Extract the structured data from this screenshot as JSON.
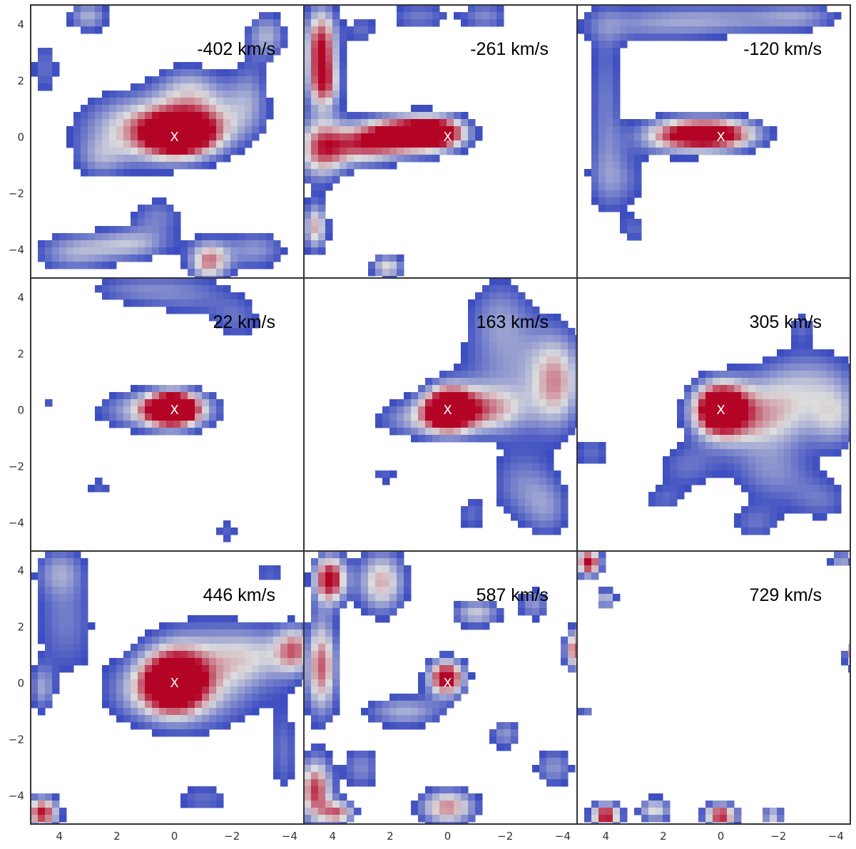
{
  "chart_data": {
    "type": "heatmap",
    "layout": "3x3 grid of channel maps",
    "colormap": "coolwarm",
    "colors": {
      "low": "#3b4cc0",
      "mid": "#dddddd",
      "high": "#b40426",
      "background": "#ffffff",
      "frame": "#333333",
      "marker": "#ffffff"
    },
    "xlim": [
      5,
      -4.5
    ],
    "ylim": [
      -5,
      4.7
    ],
    "xticks": [
      4,
      2,
      0,
      -2,
      -4
    ],
    "yticks": [
      4,
      2,
      0,
      -2,
      -4
    ],
    "xtick_labels": [
      "4",
      "2",
      "0",
      "−2",
      "−4"
    ],
    "ytick_labels": [
      "4",
      "2",
      "0",
      "−2",
      "−4"
    ],
    "marker_text": "X",
    "marker_position": [
      0,
      0
    ],
    "grid": false,
    "panels": [
      {
        "label": "-402 km/s",
        "velocity": -402,
        "blobs": [
          {
            "x": -0.2,
            "y": 0.1,
            "sx": 0.9,
            "sy": 0.55,
            "a": 1.6
          },
          {
            "x": 1.2,
            "y": 0.3,
            "sx": 1.5,
            "sy": 0.9,
            "a": 0.8
          },
          {
            "x": -1.4,
            "y": 0.7,
            "sx": 1.2,
            "sy": 0.8,
            "a": 0.5
          },
          {
            "x": -0.5,
            "y": 1.8,
            "sx": 0.8,
            "sy": 0.6,
            "a": 0.45
          },
          {
            "x": -2.6,
            "y": 1.6,
            "sx": 0.5,
            "sy": 0.9,
            "a": 0.35
          },
          {
            "x": 2.6,
            "y": -0.8,
            "sx": 0.6,
            "sy": 0.5,
            "a": 0.35
          },
          {
            "x": -1.2,
            "y": -4.4,
            "sx": 0.5,
            "sy": 0.5,
            "a": 1.0
          },
          {
            "x": 1.5,
            "y": -3.8,
            "sx": 1.0,
            "sy": 0.4,
            "a": 0.6
          },
          {
            "x": 3.5,
            "y": -4.1,
            "sx": 1.0,
            "sy": 0.5,
            "a": 0.55
          },
          {
            "x": -2.8,
            "y": -4.0,
            "sx": 0.8,
            "sy": 0.5,
            "a": 0.5
          },
          {
            "x": 0.6,
            "y": -2.8,
            "sx": 0.7,
            "sy": 0.5,
            "a": 0.4
          },
          {
            "x": 3.0,
            "y": 4.3,
            "sx": 0.5,
            "sy": 0.4,
            "a": 0.6
          },
          {
            "x": 4.5,
            "y": 2.5,
            "sx": 0.4,
            "sy": 0.8,
            "a": 0.35
          },
          {
            "x": -3.2,
            "y": 3.6,
            "sx": 0.5,
            "sy": 0.6,
            "a": 0.6
          }
        ]
      },
      {
        "label": "-261 km/s",
        "velocity": -261,
        "blobs": [
          {
            "x": 1.5,
            "y": 0.1,
            "sx": 1.0,
            "sy": 0.45,
            "a": 1.5
          },
          {
            "x": 0.3,
            "y": 0.15,
            "sx": 0.7,
            "sy": 0.4,
            "a": 1.3
          },
          {
            "x": 3.0,
            "y": -0.3,
            "sx": 0.9,
            "sy": 0.5,
            "a": 0.9
          },
          {
            "x": 4.4,
            "y": -0.4,
            "sx": 0.6,
            "sy": 0.8,
            "a": 1.0
          },
          {
            "x": 4.4,
            "y": 3.2,
            "sx": 0.4,
            "sy": 1.0,
            "a": 1.3
          },
          {
            "x": 4.3,
            "y": 1.8,
            "sx": 0.4,
            "sy": 0.6,
            "a": 0.8
          },
          {
            "x": 4.6,
            "y": -3.2,
            "sx": 0.3,
            "sy": 0.6,
            "a": 0.9
          },
          {
            "x": 2.1,
            "y": -4.6,
            "sx": 0.4,
            "sy": 0.3,
            "a": 0.8
          },
          {
            "x": 1.0,
            "y": 4.3,
            "sx": 0.8,
            "sy": 0.4,
            "a": 0.4
          },
          {
            "x": -1.3,
            "y": 4.3,
            "sx": 0.6,
            "sy": 0.4,
            "a": 0.45
          },
          {
            "x": 3.0,
            "y": 3.8,
            "sx": 0.4,
            "sy": 0.4,
            "a": 0.35
          }
        ]
      },
      {
        "label": "-120 km/s",
        "velocity": -120,
        "blobs": [
          {
            "x": 0.3,
            "y": 0.1,
            "sx": 1.1,
            "sy": 0.4,
            "a": 1.6
          },
          {
            "x": 1.8,
            "y": 0.05,
            "sx": 0.9,
            "sy": 0.45,
            "a": 0.6
          },
          {
            "x": 4.0,
            "y": 1.0,
            "sx": 0.45,
            "sy": 2.4,
            "a": 0.4
          },
          {
            "x": 3.5,
            "y": -1.5,
            "sx": 0.8,
            "sy": 0.8,
            "a": 0.35
          },
          {
            "x": 2.5,
            "y": 4.0,
            "sx": 2.0,
            "sy": 0.5,
            "a": 0.4
          },
          {
            "x": -0.5,
            "y": 4.2,
            "sx": 2.0,
            "sy": 0.4,
            "a": 0.38
          },
          {
            "x": -2.8,
            "y": 4.3,
            "sx": 1.0,
            "sy": 0.35,
            "a": 0.35
          },
          {
            "x": 3.0,
            "y": -3.3,
            "sx": 0.4,
            "sy": 0.4,
            "a": 0.3
          }
        ]
      },
      {
        "label": "22 km/s",
        "velocity": 22,
        "blobs": [
          {
            "x": 0.05,
            "y": 0.05,
            "sx": 0.6,
            "sy": 0.4,
            "a": 1.8
          },
          {
            "x": 0.5,
            "y": 0.0,
            "sx": 1.4,
            "sy": 0.5,
            "a": 0.8
          },
          {
            "x": -0.5,
            "y": 4.1,
            "sx": 1.2,
            "sy": 0.6,
            "a": 0.35
          },
          {
            "x": 1.6,
            "y": 4.3,
            "sx": 1.2,
            "sy": 0.4,
            "a": 0.35
          },
          {
            "x": -2.2,
            "y": 3.2,
            "sx": 0.7,
            "sy": 0.6,
            "a": 0.32
          },
          {
            "x": 2.6,
            "y": -2.7,
            "sx": 0.4,
            "sy": 0.3,
            "a": 0.3
          },
          {
            "x": -1.8,
            "y": -4.3,
            "sx": 0.4,
            "sy": 0.4,
            "a": 0.3
          },
          {
            "x": 4.4,
            "y": 0.3,
            "sx": 0.25,
            "sy": 0.2,
            "a": 0.25
          }
        ]
      },
      {
        "label": "163 km/s",
        "velocity": 163,
        "blobs": [
          {
            "x": 0.0,
            "y": 0.05,
            "sx": 0.6,
            "sy": 0.55,
            "a": 1.7
          },
          {
            "x": -1.3,
            "y": 0.0,
            "sx": 1.0,
            "sy": 0.6,
            "a": 0.8
          },
          {
            "x": 1.2,
            "y": -0.3,
            "sx": 1.0,
            "sy": 0.5,
            "a": 0.5
          },
          {
            "x": -2.5,
            "y": 1.5,
            "sx": 1.5,
            "sy": 1.3,
            "a": 0.45
          },
          {
            "x": -3.8,
            "y": 0.9,
            "sx": 0.6,
            "sy": 1.2,
            "a": 0.7
          },
          {
            "x": -1.8,
            "y": 3.5,
            "sx": 0.8,
            "sy": 1.0,
            "a": 0.38
          },
          {
            "x": -2.5,
            "y": -2.6,
            "sx": 0.8,
            "sy": 1.0,
            "a": 0.4
          },
          {
            "x": -3.5,
            "y": -3.5,
            "sx": 0.6,
            "sy": 0.8,
            "a": 0.4
          },
          {
            "x": -0.8,
            "y": -3.7,
            "sx": 0.4,
            "sy": 0.5,
            "a": 0.32
          },
          {
            "x": 2.2,
            "y": -2.3,
            "sx": 0.4,
            "sy": 0.3,
            "a": 0.3
          }
        ]
      },
      {
        "label": "305 km/s",
        "velocity": 305,
        "blobs": [
          {
            "x": 0.05,
            "y": 0.05,
            "sx": 0.65,
            "sy": 0.65,
            "a": 1.7
          },
          {
            "x": -1.4,
            "y": -0.3,
            "sx": 1.3,
            "sy": 0.9,
            "a": 0.8
          },
          {
            "x": -3.0,
            "y": 1.0,
            "sx": 1.3,
            "sy": 0.9,
            "a": 0.5
          },
          {
            "x": -4.0,
            "y": -0.3,
            "sx": 0.6,
            "sy": 0.8,
            "a": 0.5
          },
          {
            "x": -1.8,
            "y": -2.3,
            "sx": 1.0,
            "sy": 0.7,
            "a": 0.4
          },
          {
            "x": 1.2,
            "y": -2.0,
            "sx": 0.8,
            "sy": 0.6,
            "a": 0.35
          },
          {
            "x": -1.2,
            "y": -4.0,
            "sx": 0.7,
            "sy": 0.5,
            "a": 0.35
          },
          {
            "x": -3.5,
            "y": -3.2,
            "sx": 0.8,
            "sy": 0.6,
            "a": 0.35
          },
          {
            "x": 4.5,
            "y": -1.5,
            "sx": 0.5,
            "sy": 0.5,
            "a": 0.35
          },
          {
            "x": 2.0,
            "y": -3.2,
            "sx": 0.6,
            "sy": 0.4,
            "a": 0.3
          },
          {
            "x": -2.8,
            "y": 3.0,
            "sx": 0.4,
            "sy": 0.4,
            "a": 0.3
          }
        ]
      },
      {
        "label": "446 km/s",
        "velocity": 446,
        "blobs": [
          {
            "x": 0.0,
            "y": 0.05,
            "sx": 0.75,
            "sy": 0.75,
            "a": 1.6
          },
          {
            "x": -1.0,
            "y": 0.3,
            "sx": 1.5,
            "sy": 1.3,
            "a": 0.7
          },
          {
            "x": 1.2,
            "y": -0.3,
            "sx": 1.0,
            "sy": 0.8,
            "a": 0.4
          },
          {
            "x": -2.8,
            "y": 1.0,
            "sx": 1.0,
            "sy": 0.7,
            "a": 0.45
          },
          {
            "x": -4.2,
            "y": 1.2,
            "sx": 0.5,
            "sy": 0.6,
            "a": 0.9
          },
          {
            "x": 3.8,
            "y": 2.2,
            "sx": 0.8,
            "sy": 1.5,
            "a": 0.4
          },
          {
            "x": 4.0,
            "y": 4.0,
            "sx": 0.6,
            "sy": 0.6,
            "a": 0.4
          },
          {
            "x": 4.6,
            "y": -4.6,
            "sx": 0.4,
            "sy": 0.4,
            "a": 1.3
          },
          {
            "x": 4.6,
            "y": -0.2,
            "sx": 0.3,
            "sy": 0.6,
            "a": 0.5
          },
          {
            "x": -1.0,
            "y": -4.1,
            "sx": 0.8,
            "sy": 0.4,
            "a": 0.35
          },
          {
            "x": -3.8,
            "y": -2.5,
            "sx": 0.4,
            "sy": 1.2,
            "a": 0.35
          },
          {
            "x": -3.3,
            "y": 3.9,
            "sx": 0.5,
            "sy": 0.4,
            "a": 0.3
          }
        ]
      },
      {
        "label": "587 km/s",
        "velocity": 587,
        "blobs": [
          {
            "x": 0.05,
            "y": 0.2,
            "sx": 0.45,
            "sy": 0.45,
            "a": 1.5
          },
          {
            "x": 4.1,
            "y": 3.7,
            "sx": 0.4,
            "sy": 0.6,
            "a": 1.4
          },
          {
            "x": 4.4,
            "y": 0.6,
            "sx": 0.4,
            "sy": 1.2,
            "a": 1.1
          },
          {
            "x": 4.6,
            "y": -3.8,
            "sx": 0.4,
            "sy": 0.8,
            "a": 1.2
          },
          {
            "x": 2.3,
            "y": 3.6,
            "sx": 0.6,
            "sy": 0.8,
            "a": 0.9
          },
          {
            "x": -4.5,
            "y": 1.2,
            "sx": 0.3,
            "sy": 0.5,
            "a": 1.2
          },
          {
            "x": -1.0,
            "y": 2.5,
            "sx": 0.6,
            "sy": 0.35,
            "a": 0.7
          },
          {
            "x": 0.0,
            "y": -4.4,
            "sx": 0.7,
            "sy": 0.45,
            "a": 1.0
          },
          {
            "x": 3.8,
            "y": -4.6,
            "sx": 0.4,
            "sy": 0.3,
            "a": 1.0
          },
          {
            "x": 1.5,
            "y": -1.0,
            "sx": 1.0,
            "sy": 0.4,
            "a": 0.6
          },
          {
            "x": -2.0,
            "y": -1.8,
            "sx": 0.4,
            "sy": 0.4,
            "a": 0.5
          },
          {
            "x": -3.0,
            "y": 2.8,
            "sx": 0.4,
            "sy": 0.4,
            "a": 0.5
          },
          {
            "x": 3.0,
            "y": -3.0,
            "sx": 0.5,
            "sy": 0.6,
            "a": 0.45
          },
          {
            "x": -3.7,
            "y": -3.0,
            "sx": 0.5,
            "sy": 0.5,
            "a": 0.5
          }
        ]
      },
      {
        "label": "729 km/s",
        "velocity": 729,
        "blobs": [
          {
            "x": 4.6,
            "y": 4.3,
            "sx": 0.3,
            "sy": 0.35,
            "a": 1.4
          },
          {
            "x": 4.0,
            "y": 3.0,
            "sx": 0.25,
            "sy": 0.25,
            "a": 0.7
          },
          {
            "x": 4.0,
            "y": -4.7,
            "sx": 0.35,
            "sy": 0.3,
            "a": 1.4
          },
          {
            "x": 0.0,
            "y": -4.7,
            "sx": 0.4,
            "sy": 0.3,
            "a": 1.3
          },
          {
            "x": 2.3,
            "y": -4.5,
            "sx": 0.4,
            "sy": 0.3,
            "a": 0.8
          },
          {
            "x": -1.8,
            "y": -4.7,
            "sx": 0.25,
            "sy": 0.2,
            "a": 0.8
          },
          {
            "x": -4.6,
            "y": 1.0,
            "sx": 0.2,
            "sy": 0.3,
            "a": 1.0
          },
          {
            "x": -4.2,
            "y": 4.4,
            "sx": 0.3,
            "sy": 0.2,
            "a": 0.6
          },
          {
            "x": 4.7,
            "y": -1.0,
            "sx": 0.2,
            "sy": 0.2,
            "a": 0.4
          }
        ]
      }
    ]
  }
}
